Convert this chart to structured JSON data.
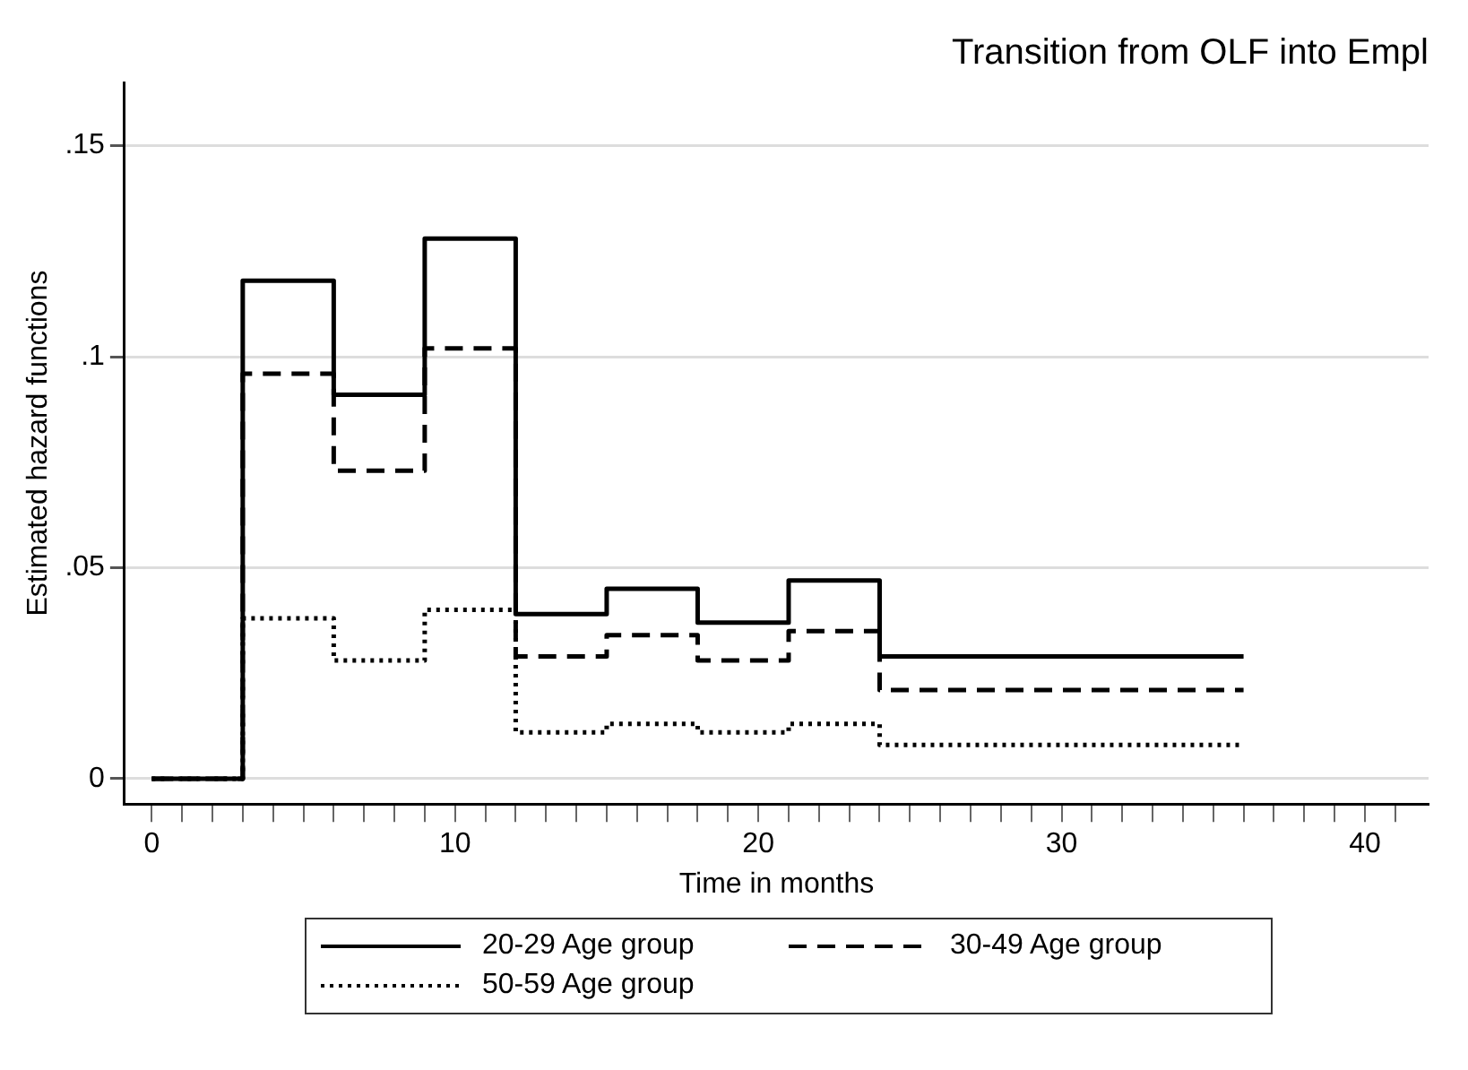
{
  "chart_data": {
    "type": "step",
    "title": "Transition from OLF into Empl",
    "xlabel": "Time in months",
    "ylabel": "Estimated hazard functions",
    "x": [
      0,
      3,
      6,
      9,
      12,
      15,
      18,
      21,
      24,
      36
    ],
    "series": [
      {
        "name": "20-29 Age group",
        "color": "#000000",
        "line_style": "solid",
        "values": [
          0,
          0.118,
          0.091,
          0.128,
          0.039,
          0.045,
          0.037,
          0.047,
          0.029,
          0.029
        ]
      },
      {
        "name": "30-49 Age group",
        "color": "#000000",
        "line_style": "dashed",
        "values": [
          0,
          0.096,
          0.073,
          0.102,
          0.029,
          0.034,
          0.028,
          0.035,
          0.021,
          0.021
        ]
      },
      {
        "name": "50-59 Age group",
        "color": "#000000",
        "line_style": "dotted",
        "values": [
          0,
          0.038,
          0.028,
          0.04,
          0.011,
          0.013,
          0.011,
          0.013,
          0.008,
          0.008
        ]
      }
    ],
    "xlim": [
      -0.9,
      42.1
    ],
    "xticks": [
      0,
      {
        "value": 1,
        "label": null
      },
      {
        "value": 2,
        "label": null
      },
      {
        "value": 3,
        "label": null
      },
      {
        "value": 4,
        "label": null
      },
      {
        "value": 5,
        "label": null
      },
      {
        "value": 6,
        "label": null
      },
      {
        "value": 7,
        "label": null
      },
      {
        "value": 8,
        "label": null
      },
      {
        "value": 9,
        "label": null
      },
      10,
      {
        "value": 11,
        "label": null
      },
      {
        "value": 12,
        "label": null
      },
      {
        "value": 13,
        "label": null
      },
      {
        "value": 14,
        "label": null
      },
      {
        "value": 15,
        "label": null
      },
      {
        "value": 16,
        "label": null
      },
      {
        "value": 17,
        "label": null
      },
      {
        "value": 18,
        "label": null
      },
      {
        "value": 19,
        "label": null
      },
      20,
      {
        "value": 21,
        "label": null
      },
      {
        "value": 22,
        "label": null
      },
      {
        "value": 23,
        "label": null
      },
      {
        "value": 24,
        "label": null
      },
      {
        "value": 25,
        "label": null
      },
      {
        "value": 26,
        "label": null
      },
      {
        "value": 27,
        "label": null
      },
      {
        "value": 28,
        "label": null
      },
      {
        "value": 29,
        "label": null
      },
      30,
      {
        "value": 31,
        "label": null
      },
      {
        "value": 32,
        "label": null
      },
      {
        "value": 33,
        "label": null
      },
      {
        "value": 34,
        "label": null
      },
      {
        "value": 35,
        "label": null
      },
      {
        "value": 36,
        "label": null
      },
      {
        "value": 37,
        "label": null
      },
      {
        "value": 38,
        "label": null
      },
      {
        "value": 39,
        "label": null
      },
      40,
      {
        "value": 41,
        "label": null
      }
    ],
    "ylim": [
      -0.006,
      0.165
    ],
    "yticks": [
      {
        "value": 0,
        "label": "0"
      },
      {
        "value": 0.05,
        "label": ".05"
      },
      {
        "value": 0.1,
        "label": ".1"
      },
      {
        "value": 0.15,
        "label": ".15"
      }
    ],
    "grid": "y",
    "legend": "bottom",
    "marker": "none"
  }
}
